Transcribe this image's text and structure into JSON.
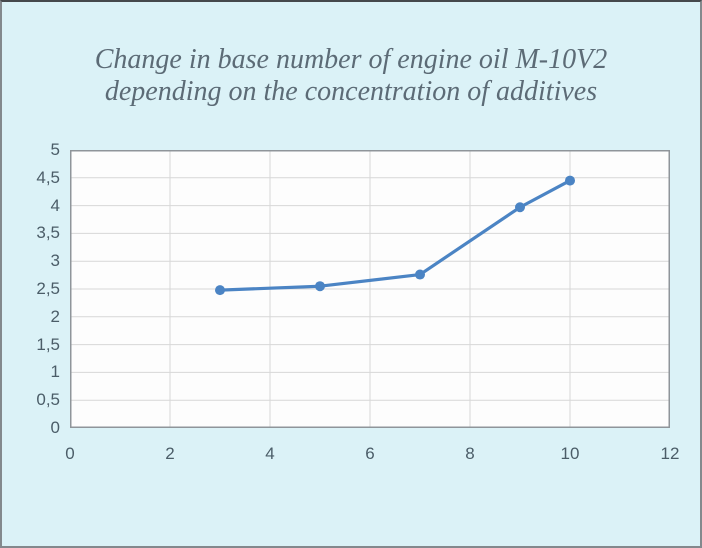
{
  "window": {
    "background_color": "#dbf2f7",
    "border_color": "#83898d"
  },
  "chart_data": {
    "type": "line",
    "title": "Change in base number of engine oil M-10V2 depending on the concentration of additives",
    "title_lines": [
      "Change in base number of engine oil M-10V2",
      "depending on the concentration of additives"
    ],
    "x": [
      3,
      5,
      7,
      9,
      10
    ],
    "y": [
      2.48,
      2.55,
      2.76,
      3.97,
      4.45
    ],
    "xlabel": "",
    "ylabel": "",
    "xlim": [
      0,
      12
    ],
    "ylim": [
      0,
      5
    ],
    "x_ticks": {
      "values": [
        0,
        2,
        4,
        6,
        8,
        10,
        12
      ],
      "labels": [
        "0",
        "2",
        "4",
        "6",
        "8",
        "10",
        "12"
      ]
    },
    "y_ticks": {
      "values": [
        0,
        0.5,
        1,
        1.5,
        2,
        2.5,
        3,
        3.5,
        4,
        4.5,
        5
      ],
      "labels": [
        "0",
        "0,5",
        "1",
        "1,5",
        "2",
        "2,5",
        "3",
        "3,5",
        "4",
        "4,5",
        "5"
      ]
    },
    "grid": true,
    "legend": false
  },
  "style": {
    "page_bg": "#dbf2f7",
    "plot_bg": "#fdfdfd",
    "grid_color": "#d7d7d7",
    "frame_color": "#8f959a",
    "line_color": "#4b84c4",
    "marker_color": "#4b84c4",
    "title_color": "#5c6b76",
    "tick_color": "#4b5d68",
    "border_color": "#83898d"
  }
}
